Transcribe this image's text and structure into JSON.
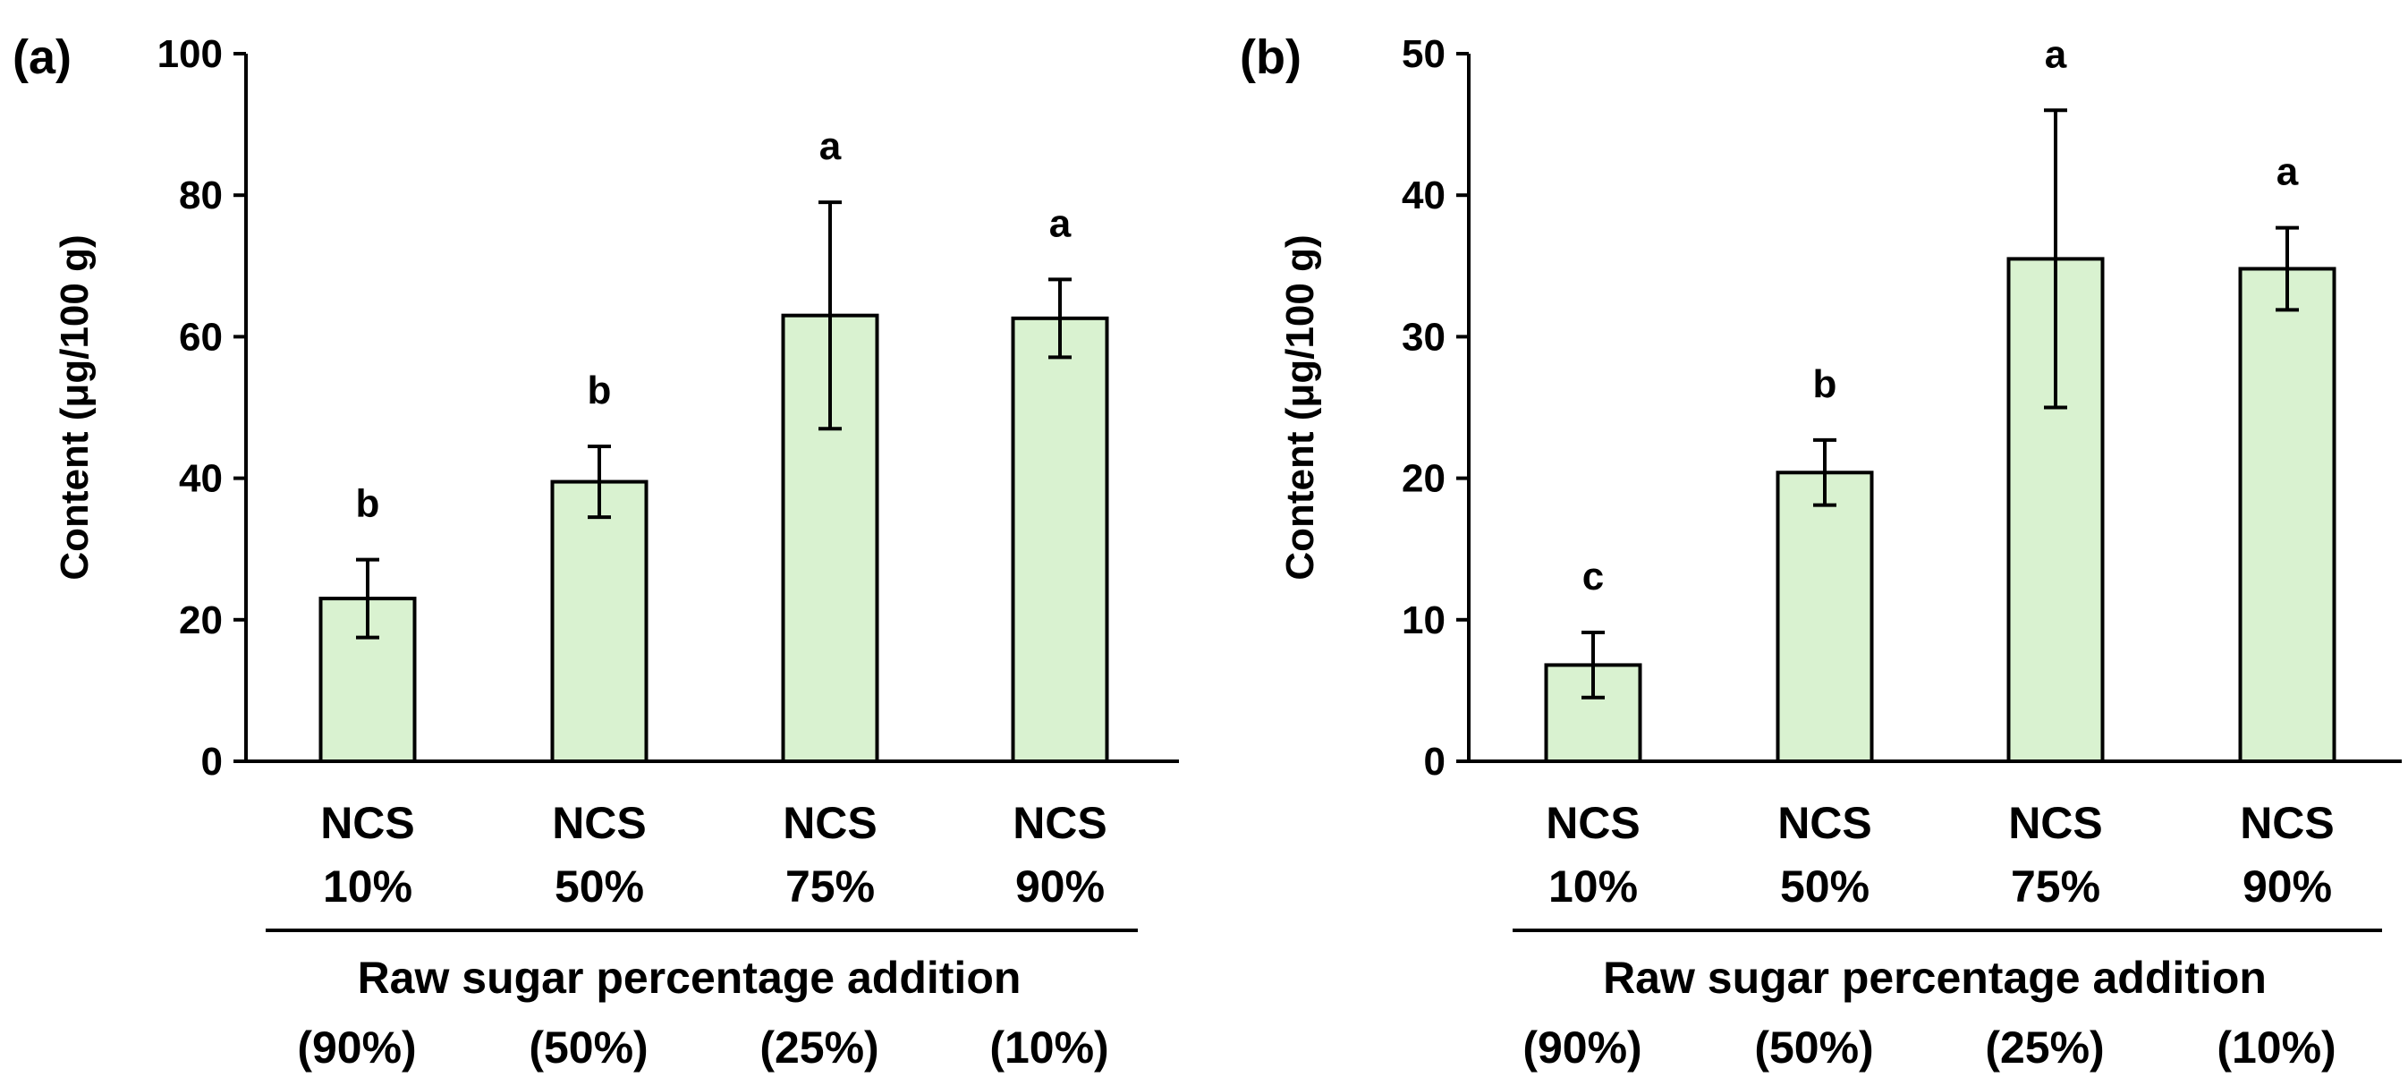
{
  "chart_data": [
    {
      "panel_label": "(a)",
      "type": "bar",
      "categories": [
        [
          "NCS",
          "10%"
        ],
        [
          "NCS",
          "50%"
        ],
        [
          "NCS",
          "75%"
        ],
        [
          "NCS",
          "90%"
        ]
      ],
      "values": [
        23.0,
        39.5,
        63.0,
        62.6
      ],
      "error": [
        5.5,
        5.0,
        16.0,
        5.5
      ],
      "significance_letters": [
        "b",
        "b",
        "a",
        "a"
      ],
      "ylabel": "Content (μg/100 g)",
      "ylim": [
        0,
        100
      ],
      "yticks": [
        "0",
        "20",
        "40",
        "60",
        "80",
        "100"
      ],
      "xgroup_label": "Raw sugar percentage addition",
      "xgroup_values": [
        "(90%)",
        "(50%)",
        "(25%)",
        "(10%)"
      ],
      "bar_color": "#d9f2d0",
      "grid": false
    },
    {
      "panel_label": "(b)",
      "type": "bar",
      "categories": [
        [
          "NCS",
          "10%"
        ],
        [
          "NCS",
          "50%"
        ],
        [
          "NCS",
          "75%"
        ],
        [
          "NCS",
          "90%"
        ]
      ],
      "values": [
        6.8,
        20.4,
        35.5,
        34.8
      ],
      "error": [
        2.3,
        2.3,
        10.5,
        2.9
      ],
      "significance_letters": [
        "c",
        "b",
        "a",
        "a"
      ],
      "ylabel": "Content (μg/100 g)",
      "ylim": [
        0,
        50
      ],
      "yticks": [
        "0",
        "10",
        "20",
        "30",
        "40",
        "50"
      ],
      "xgroup_label": "Raw sugar percentage addition",
      "xgroup_values": [
        "(90%)",
        "(50%)",
        "(25%)",
        "(10%)"
      ],
      "bar_color": "#d9f2d0",
      "grid": false
    }
  ]
}
